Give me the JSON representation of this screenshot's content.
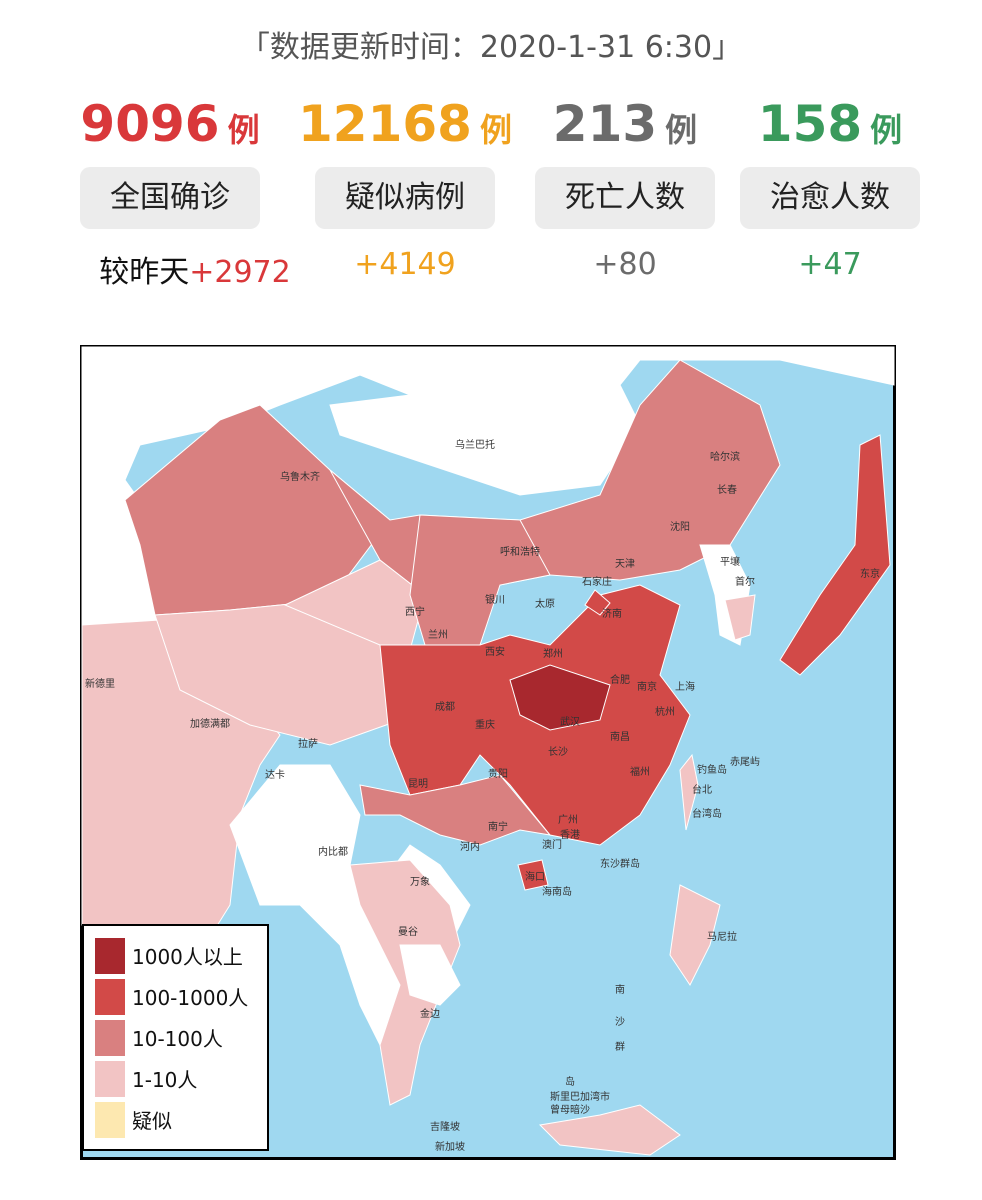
{
  "header": {
    "update_time": "「数据更新时间：2020-1-31 6:30」"
  },
  "stats": [
    {
      "value": 9096,
      "unit": "例",
      "label": "全国确诊",
      "change_prefix": "较昨天",
      "change": "+2972",
      "color": "#d9383a"
    },
    {
      "value": 12168,
      "unit": "例",
      "label": "疑似病例",
      "change": "+4149",
      "color": "#f0a21e"
    },
    {
      "value": 213,
      "unit": "例",
      "label": "死亡人数",
      "change": "+80",
      "color": "#6b6b6b"
    },
    {
      "value": 158,
      "unit": "例",
      "label": "治愈人数",
      "change": "+47",
      "color": "#3a9a5c"
    }
  ],
  "map": {
    "labels": [
      "乌鲁木齐",
      "乌兰巴托",
      "哈尔滨",
      "长春",
      "沈阳",
      "呼和浩特",
      "天津",
      "石家庄",
      "太原",
      "济南",
      "西宁",
      "兰州",
      "银川",
      "西安",
      "郑州",
      "合肥",
      "南京",
      "上海",
      "杭州",
      "武汉",
      "成都",
      "重庆",
      "长沙",
      "南昌",
      "福州",
      "贵阳",
      "昆明",
      "南宁",
      "广州",
      "香港",
      "澳门",
      "海口",
      "海南岛",
      "东沙群岛",
      "拉萨",
      "台北",
      "台湾岛",
      "钓鱼岛",
      "赤尾屿",
      "平壤",
      "首尔",
      "东京",
      "新德里",
      "加德满都",
      "达卡",
      "内比都",
      "河内",
      "万象",
      "曼谷",
      "金边",
      "马尼拉",
      "吉隆坡",
      "新加坡",
      "斯里巴加湾市",
      "曾母暗沙",
      "南",
      "沙",
      "群",
      "岛"
    ],
    "legend": [
      {
        "label": "1000人以上",
        "color": "#a8282e"
      },
      {
        "label": "100-1000人",
        "color": "#d24a48"
      },
      {
        "label": "10-100人",
        "color": "#d98080"
      },
      {
        "label": "1-10人",
        "color": "#f2c4c4"
      },
      {
        "label": "疑似",
        "color": "#fde8b0"
      }
    ]
  }
}
